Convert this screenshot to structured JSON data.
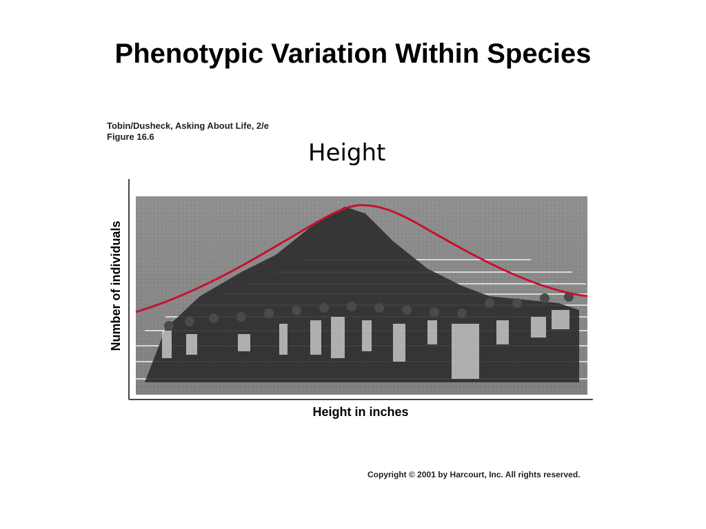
{
  "slide": {
    "title": "Phenotypic Variation Within Species",
    "subtitle": "Height"
  },
  "figure": {
    "source_line1": "Tobin/Dusheck, Asking About Life, 2/e",
    "source_line2": "Figure 16.6",
    "y_axis_label": "Number of individuals",
    "x_axis_label": "Height in inches",
    "copyright": "Copyright © 2001 by Harcourt, Inc. All rights reserved.",
    "curve_color": "#c8102e",
    "photo_tone": "#8f8f8f"
  }
}
